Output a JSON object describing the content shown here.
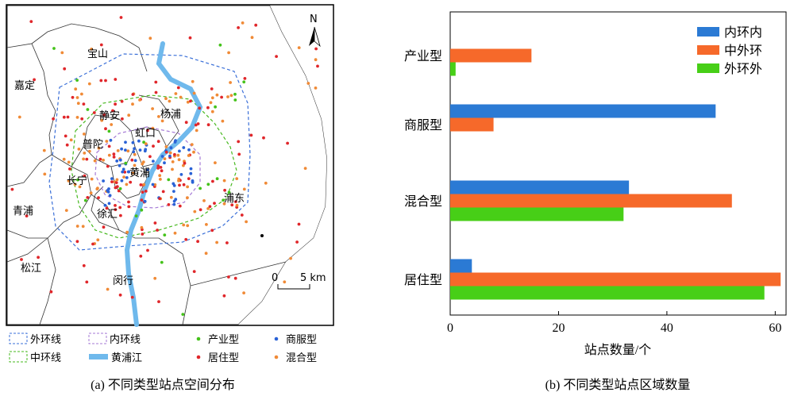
{
  "map_panel": {
    "caption": "(a) 不同类型站点空间分布",
    "north_label": "N",
    "scale": {
      "zero": "0",
      "label": "5 km"
    },
    "district_labels": [
      "宝山",
      "嘉定",
      "静安",
      "杨浦",
      "虹口",
      "普陀",
      "黄浦",
      "长宁",
      "徐汇",
      "浦东",
      "青浦",
      "松江",
      "闵行"
    ],
    "legend": [
      {
        "label": "外环线",
        "kind": "dashed-box",
        "color": "#3a6fd8"
      },
      {
        "label": "内环线",
        "kind": "dashed-box",
        "color": "#a57ad6"
      },
      {
        "label": "产业型",
        "kind": "dot",
        "color": "#44c21a"
      },
      {
        "label": "商服型",
        "kind": "dot",
        "color": "#2a62d6"
      },
      {
        "label": "中环线",
        "kind": "dashed-box",
        "color": "#46b81e"
      },
      {
        "label": "黄浦江",
        "kind": "thick-line",
        "color": "#6fb9ec"
      },
      {
        "label": "居住型",
        "kind": "dot",
        "color": "#e0262a"
      },
      {
        "label": "混合型",
        "kind": "dot",
        "color": "#f08a36"
      }
    ]
  },
  "chart_data": {
    "type": "bar",
    "orientation": "horizontal",
    "title": "(b) 不同类型站点区域数量",
    "xlabel": "站点数量/个",
    "ylabel": "",
    "xlim": [
      0,
      62
    ],
    "xticks": [
      "0",
      "20",
      "40",
      "60"
    ],
    "categories": [
      "产业型",
      "商服型",
      "混合型",
      "居住型"
    ],
    "series": [
      {
        "name": "内环内",
        "color": "#2b7ad4",
        "values": [
          0,
          49,
          33,
          4
        ]
      },
      {
        "name": "中外环",
        "color": "#f6692a",
        "values": [
          15,
          8,
          52,
          61
        ]
      },
      {
        "name": "外环外",
        "color": "#47cf17",
        "values": [
          1,
          0,
          32,
          58
        ]
      }
    ],
    "legend_position": "top-right",
    "grid": false
  }
}
